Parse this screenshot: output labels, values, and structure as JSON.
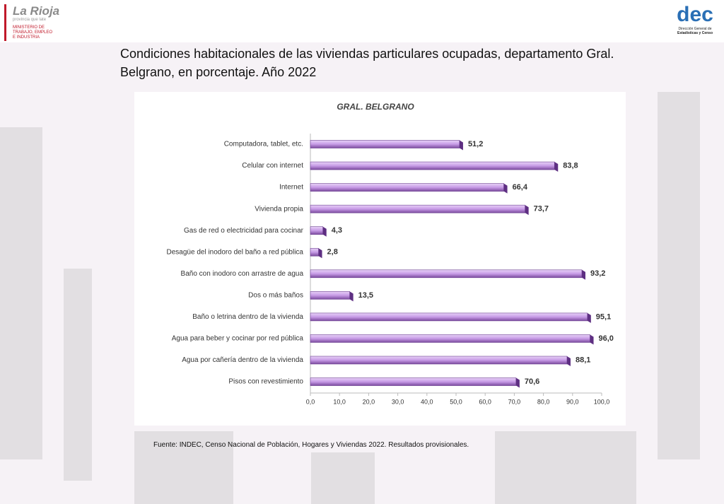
{
  "header": {
    "logo": "La Rioja",
    "logo_tagline": "provincia que late",
    "ministry": [
      "MINISTERIO DE",
      "TRABAJO, EMPLEO",
      "E INDUSTRIA"
    ],
    "dec_logo": "dec",
    "dec_caption": [
      "Dirección General de",
      "Estadísticas y Censo"
    ]
  },
  "chart_data": {
    "type": "bar",
    "orientation": "horizontal",
    "title": "Condiciones habitacionales de las viviendas particulares ocupadas, departamento Gral. Belgrano, en porcentaje. Año 2022",
    "subtitle": "GRAL. BELGRANO",
    "categories": [
      "Computadora, tablet, etc.",
      "Celular con internet",
      "Internet",
      "Vivienda propia",
      "Gas de red o electricidad para cocinar",
      "Desagüe del inodoro del baño a red pública",
      "Baño con inodoro con arrastre de agua",
      "Dos o más baños",
      "Baño o letrina dentro de la vivienda",
      "Agua para beber y cocinar por red pública",
      "Agua por cañería dentro de la vivienda",
      "Pisos con revestimiento"
    ],
    "values": [
      51.2,
      83.8,
      66.4,
      73.7,
      4.3,
      2.8,
      93.2,
      13.5,
      95.1,
      96.0,
      88.1,
      70.6
    ],
    "value_labels": [
      "51,2",
      "83,8",
      "66,4",
      "73,7",
      "4,3",
      "2,8",
      "93,2",
      "13,5",
      "95,1",
      "96,0",
      "88,1",
      "70,6"
    ],
    "color": "#c79be6",
    "xlim": [
      0,
      100
    ],
    "xticks": [
      {
        "value": 0,
        "label": "0,0"
      },
      {
        "value": 10,
        "label": "10,0"
      },
      {
        "value": 20,
        "label": "20,0"
      },
      {
        "value": 30,
        "label": "30,0"
      },
      {
        "value": 40,
        "label": "40,0"
      },
      {
        "value": 50,
        "label": "50,0"
      },
      {
        "value": 60,
        "label": "60,0"
      },
      {
        "value": 70,
        "label": "70,0"
      },
      {
        "value": 80,
        "label": "80,0"
      },
      {
        "value": 90,
        "label": "90,0"
      },
      {
        "value": 100,
        "label": "100,0"
      }
    ],
    "source": "Fuente: INDEC, Censo Nacional de Población, Hogares y Viviendas 2022. Resultados provisionales."
  }
}
